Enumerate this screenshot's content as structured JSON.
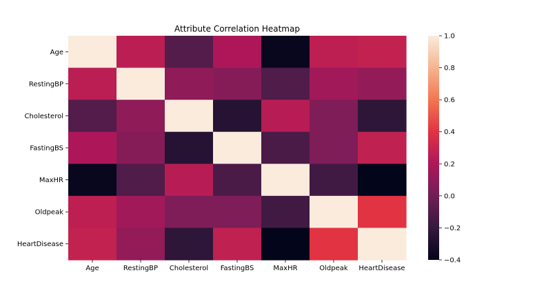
{
  "chart_data": {
    "type": "heatmap",
    "title": "Attribute Correlation Heatmap",
    "xlabel": "",
    "ylabel": "",
    "x_categories": [
      "Age",
      "RestingBP",
      "Cholesterol",
      "FastingBS",
      "MaxHR",
      "Oldpeak",
      "HeartDisease"
    ],
    "y_categories": [
      "Age",
      "RestingBP",
      "Cholesterol",
      "FastingBS",
      "MaxHR",
      "Oldpeak",
      "HeartDisease"
    ],
    "values": [
      [
        1.0,
        0.25,
        -0.1,
        0.2,
        -0.38,
        0.26,
        0.28
      ],
      [
        0.25,
        1.0,
        0.1,
        0.07,
        -0.11,
        0.16,
        0.11
      ],
      [
        -0.1,
        0.1,
        1.0,
        -0.26,
        0.24,
        0.05,
        -0.23
      ],
      [
        0.2,
        0.07,
        -0.26,
        1.0,
        -0.13,
        0.05,
        0.27
      ],
      [
        -0.38,
        -0.11,
        0.24,
        -0.13,
        1.0,
        -0.16,
        -0.4
      ],
      [
        0.26,
        0.16,
        0.05,
        0.05,
        -0.16,
        1.0,
        0.4
      ],
      [
        0.28,
        0.11,
        -0.23,
        0.27,
        -0.4,
        0.4,
        1.0
      ]
    ],
    "colorbar": {
      "range": [
        -0.4,
        1.0
      ],
      "ticks": [
        1.0,
        0.8,
        0.6,
        0.4,
        0.2,
        0.0,
        -0.2,
        -0.4
      ],
      "tick_labels": [
        "1.0",
        "0.8",
        "0.6",
        "0.4",
        "0.2",
        "0.0",
        "−0.2",
        "−0.4"
      ],
      "colormap": "rocket",
      "colors": [
        "#03051a",
        "#35193e",
        "#701f57",
        "#ad1759",
        "#e13342",
        "#f37651",
        "#f6b48f",
        "#faebdd"
      ]
    }
  }
}
